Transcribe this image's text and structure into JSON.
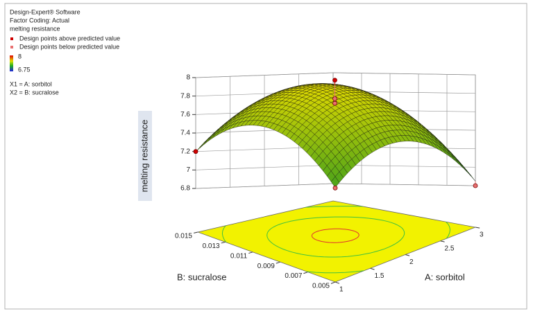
{
  "chart_data": {
    "type": "surface",
    "software": "Design-Expert® Software",
    "factor_coding": "Factor Coding: Actual",
    "response": "melting resistance",
    "color_scale": {
      "max": 8,
      "min": 6.75,
      "max_color": "#e00000",
      "min_color": "#2020e0"
    },
    "factors": [
      "X1 = A: sorbitol",
      "X2 = B: sucralose"
    ],
    "xlabel": "A: sorbitol",
    "ylabel": "B: sucralose",
    "zlabel": "melting resistance",
    "xlim": [
      1,
      3
    ],
    "xticks": [
      1,
      1.5,
      2,
      2.5,
      3
    ],
    "ylim": [
      0.005,
      0.015
    ],
    "yticks": [
      0.005,
      0.007,
      0.009,
      0.011,
      0.013,
      0.015
    ],
    "zlim": [
      6.8,
      8
    ],
    "zticks": [
      6.8,
      7,
      7.2,
      7.4,
      7.6,
      7.8,
      8
    ],
    "series": [
      {
        "name": "Design points above predicted value",
        "color": "#d00000",
        "x": [
          2,
          1
        ],
        "y": [
          0.01,
          0.015
        ],
        "z": [
          8,
          7.2
        ]
      },
      {
        "name": "Design points below predicted value",
        "color": "#e87070",
        "x": [
          2,
          2,
          1,
          3
        ],
        "y": [
          0.01,
          0.01,
          0.005,
          0.005
        ],
        "z": [
          7.8,
          7.75,
          7.0,
          6.8
        ]
      }
    ]
  }
}
